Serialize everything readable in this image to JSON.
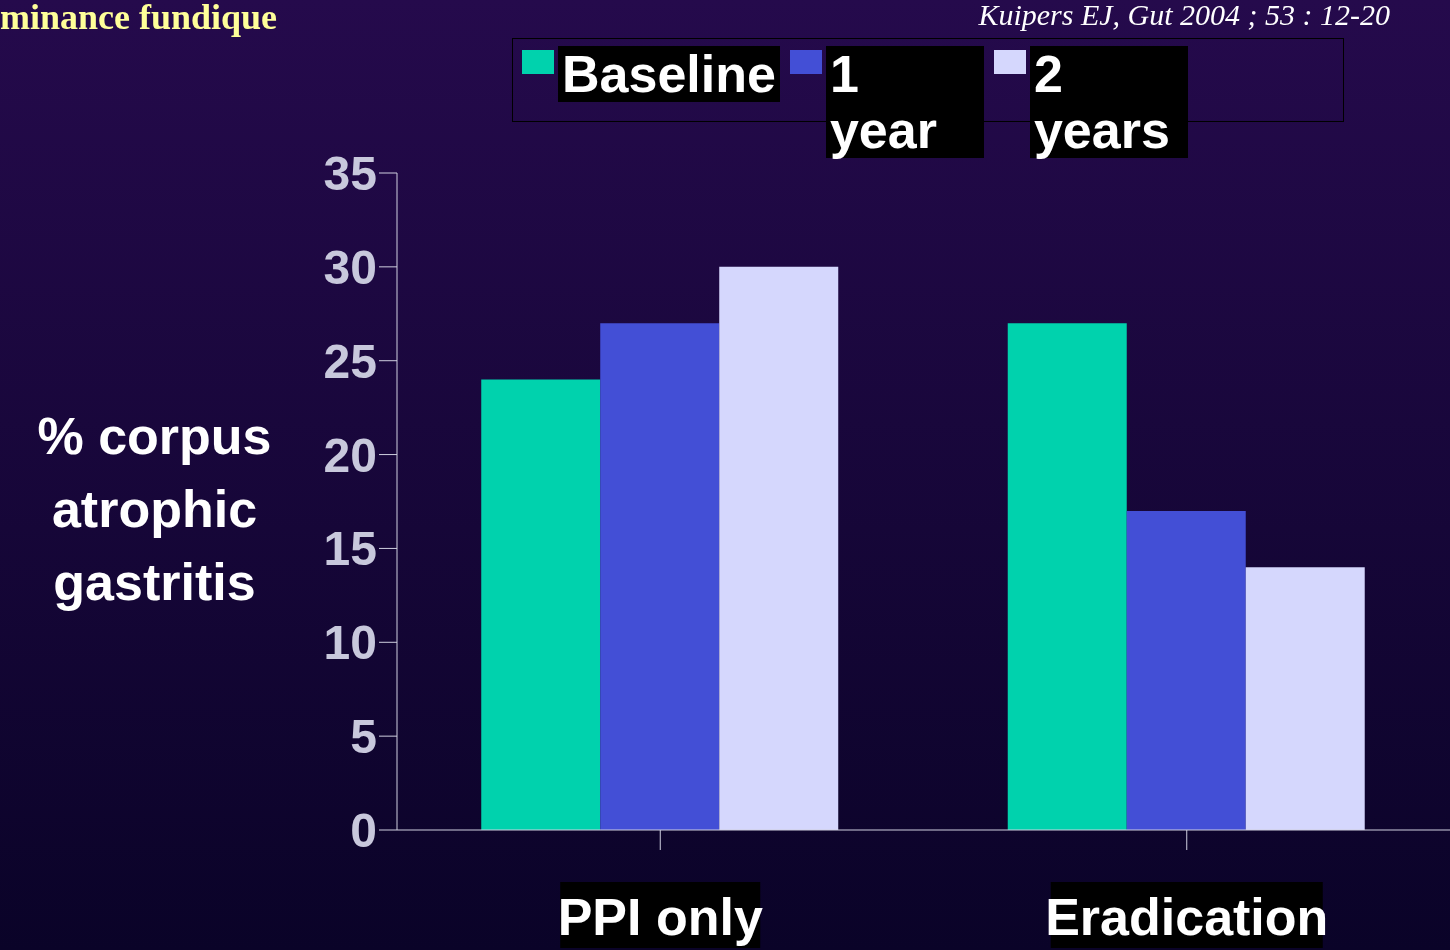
{
  "chart_data": {
    "type": "bar",
    "title": "minance fundique",
    "annotations": [
      "Kuipers EJ, Gut 2004 ; 53 : 12-20"
    ],
    "ylabel": "% corpus atrophic gastritis",
    "categories": [
      "PPI only",
      "Eradication"
    ],
    "series": [
      {
        "name": "Baseline",
        "color": "#00d2ad",
        "values": [
          24,
          27
        ]
      },
      {
        "name": "1 year",
        "color": "#434fd6",
        "values": [
          27,
          17
        ]
      },
      {
        "name": "2 years",
        "color": "#d5d7fd",
        "values": [
          30,
          14
        ]
      }
    ],
    "ylim": [
      0,
      35
    ],
    "yticks": [
      0,
      5,
      10,
      15,
      20,
      25,
      30,
      35
    ],
    "grid": false,
    "legend": "top"
  }
}
